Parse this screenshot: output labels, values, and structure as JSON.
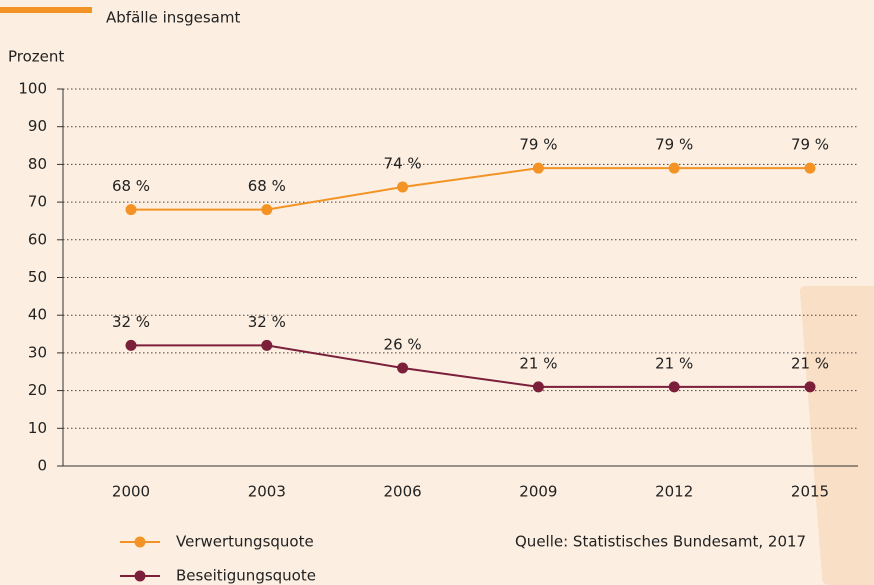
{
  "chart_data": {
    "type": "line",
    "title": "Abfälle insgesamt",
    "ylabel": "Prozent",
    "source": "Quelle: Statistisches Bundesamt, 2017",
    "categories": [
      "2000",
      "2003",
      "2006",
      "2009",
      "2012",
      "2015"
    ],
    "series": [
      {
        "name": "Verwertungsquote",
        "color": "#f39325",
        "values": [
          68,
          68,
          74,
          79,
          79,
          79
        ],
        "value_labels": [
          "68 %",
          "68 %",
          "74 %",
          "79 %",
          "79 %",
          "79 %"
        ]
      },
      {
        "name": "Beseitigungsquote",
        "color": "#7b1f3a",
        "values": [
          32,
          32,
          26,
          21,
          21,
          21
        ],
        "value_labels": [
          "32 %",
          "32 %",
          "26 %",
          "21 %",
          "21 %",
          "21 %"
        ]
      }
    ],
    "ylim": [
      0,
      100
    ],
    "yticks": [
      0,
      10,
      20,
      30,
      40,
      50,
      60,
      70,
      80,
      90,
      100
    ],
    "grid": true
  }
}
